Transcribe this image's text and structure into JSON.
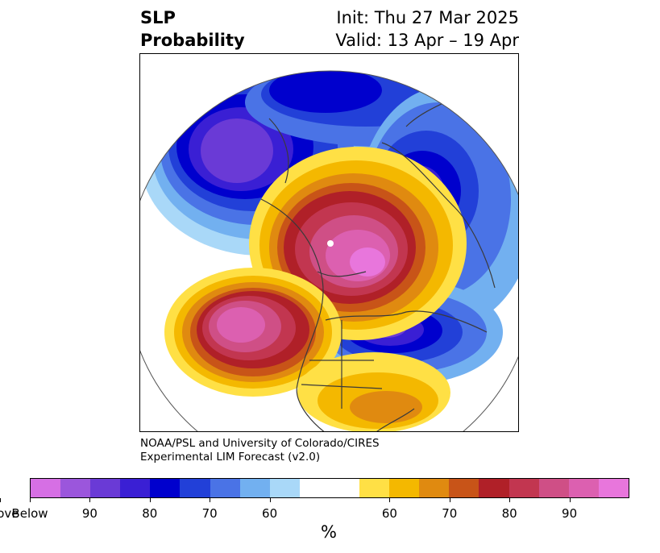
{
  "title": {
    "left_line1": "SLP",
    "left_line2": "Probability",
    "right_line1": "Init: Thu 27 Mar 2025",
    "right_line2": "Valid: 13 Apr – 19 Apr"
  },
  "credit": {
    "line1": "NOAA/PSL and University of Colorado/CIRES",
    "line2": "Experimental LIM Forecast (v2.0)"
  },
  "colorbar": {
    "unit": "%",
    "colors": [
      "#d66fe4",
      "#9b56dc",
      "#6a3ad6",
      "#3a1fd4",
      "#0000cd",
      "#2240d8",
      "#4a73e6",
      "#72b0f0",
      "#a9d8f8",
      "#ffffff",
      "#ffe045",
      "#f4b800",
      "#e08a10",
      "#c85418",
      "#b02028",
      "#c23650",
      "#cf4f86",
      "#dc60b0",
      "#e876dc"
    ],
    "widths": [
      1,
      1,
      1,
      1,
      1,
      1,
      1,
      1,
      1,
      2,
      1,
      1,
      1,
      1,
      1,
      1,
      1,
      1,
      1
    ],
    "ticks": [
      "Below",
      "90",
      "80",
      "70",
      "60",
      "60",
      "70",
      "80",
      "90",
      "Above"
    ]
  },
  "map": {
    "projection": "north-polar-stereographic",
    "field": "sea-level-pressure probability"
  }
}
